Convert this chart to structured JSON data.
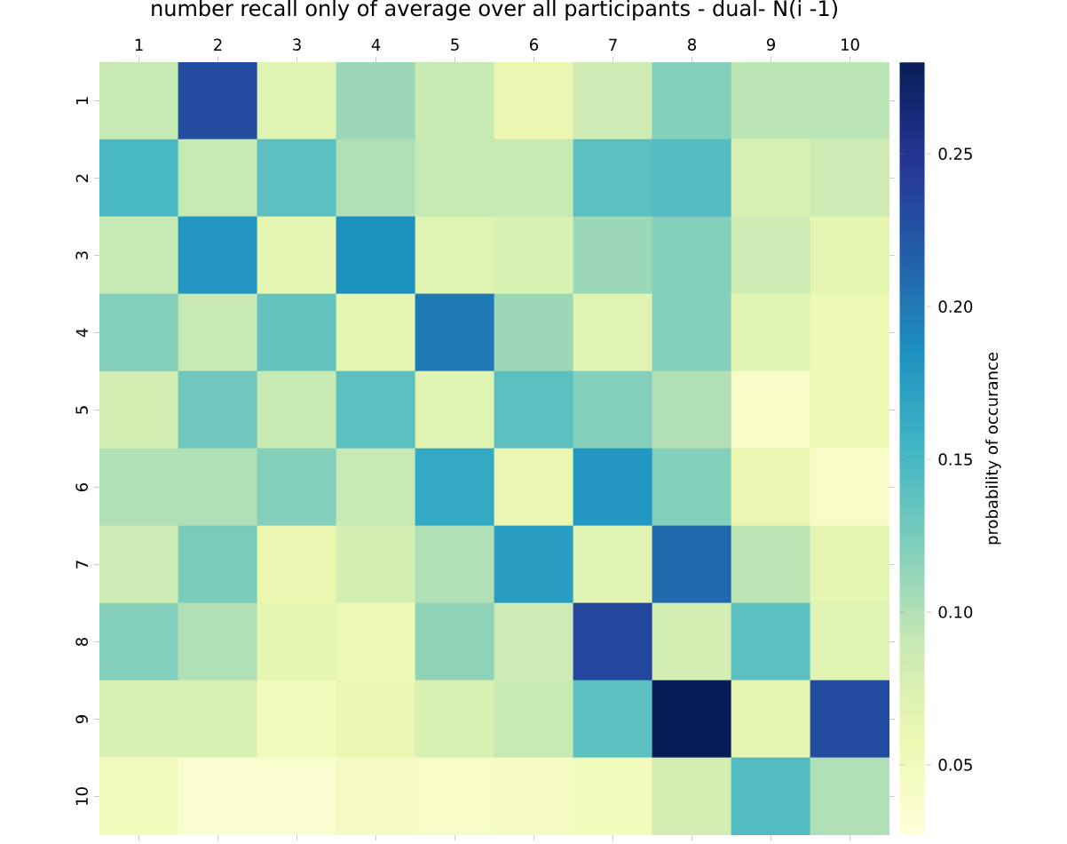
{
  "chart_data": {
    "type": "heatmap",
    "title": "number recall only of average over all participants - dual- N(i -1)",
    "clabel": "probability of occurance",
    "categories": [
      "1",
      "2",
      "3",
      "4",
      "5",
      "6",
      "7",
      "8",
      "9",
      "10"
    ],
    "y_categories": [
      "1",
      "2",
      "3",
      "4",
      "5",
      "6",
      "7",
      "8",
      "9",
      "10"
    ],
    "cells": [
      [
        0.09,
        0.23,
        0.07,
        0.11,
        0.09,
        0.06,
        0.085,
        0.12,
        0.095,
        0.095
      ],
      [
        0.15,
        0.09,
        0.14,
        0.1,
        0.09,
        0.09,
        0.14,
        0.145,
        0.075,
        0.085
      ],
      [
        0.09,
        0.18,
        0.065,
        0.185,
        0.07,
        0.075,
        0.11,
        0.12,
        0.085,
        0.065
      ],
      [
        0.12,
        0.09,
        0.135,
        0.065,
        0.2,
        0.11,
        0.07,
        0.12,
        0.07,
        0.055
      ],
      [
        0.08,
        0.13,
        0.09,
        0.14,
        0.07,
        0.14,
        0.12,
        0.1,
        0.04,
        0.055
      ],
      [
        0.1,
        0.1,
        0.12,
        0.09,
        0.165,
        0.06,
        0.18,
        0.12,
        0.06,
        0.04
      ],
      [
        0.085,
        0.125,
        0.06,
        0.08,
        0.1,
        0.175,
        0.07,
        0.21,
        0.095,
        0.065
      ],
      [
        0.12,
        0.1,
        0.065,
        0.055,
        0.115,
        0.085,
        0.235,
        0.08,
        0.14,
        0.07
      ],
      [
        0.075,
        0.075,
        0.05,
        0.06,
        0.075,
        0.09,
        0.14,
        0.28,
        0.065,
        0.23
      ],
      [
        0.05,
        0.035,
        0.035,
        0.045,
        0.04,
        0.045,
        0.05,
        0.08,
        0.145,
        0.1
      ]
    ],
    "clim": [
      0.027,
      0.28
    ],
    "cticks": [
      {
        "value": 0.05,
        "label": "0.05"
      },
      {
        "value": 0.1,
        "label": "0.10"
      },
      {
        "value": 0.15,
        "label": "0.15"
      },
      {
        "value": 0.2,
        "label": "0.20"
      },
      {
        "value": 0.25,
        "label": "0.25"
      }
    ]
  }
}
